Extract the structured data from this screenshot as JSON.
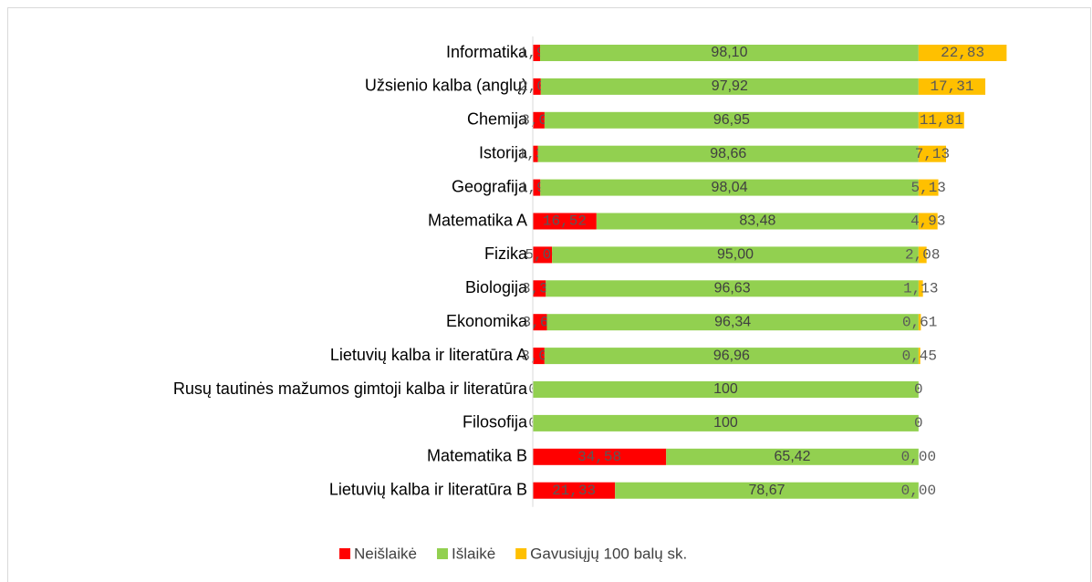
{
  "chart_data": {
    "type": "stacked-barh",
    "categories": [
      "Informatika",
      "Užsienio kalba (anglų)",
      "Chemija",
      "Istorija",
      "Geografija",
      "Matematika A",
      "Fizika",
      "Biologija",
      "Ekonomika",
      "Lietuvių kalba ir literatūra A",
      "Rusų tautinės mažumos gimtoji kalba ir literatūra",
      "Filosofija",
      "Matematika B",
      "Lietuvių kalba ir literatūra B"
    ],
    "series": [
      {
        "name": "Neišlaikė",
        "color": "#ff0000",
        "values": [
          1.9,
          2.08,
          3.05,
          1.34,
          1.96,
          16.52,
          5.0,
          3.38,
          3.66,
          3.04,
          0,
          0,
          34.58,
          21.33
        ],
        "value_labels": [
          "1,90",
          "2,08",
          "3,05",
          "1,34",
          "1,96",
          "16,52",
          "5,00",
          "3,38",
          "3,66",
          "3,04",
          "0",
          "0",
          "34,58",
          "21,33"
        ]
      },
      {
        "name": "Išlaikė",
        "color": "#92d050",
        "values": [
          98.1,
          97.92,
          96.95,
          98.66,
          98.04,
          83.48,
          95.0,
          96.63,
          96.34,
          96.96,
          100,
          100,
          65.42,
          78.67
        ],
        "value_labels": [
          "98,10",
          "97,92",
          "96,95",
          "98,66",
          "98,04",
          "83,48",
          "95,00",
          "96,63",
          "96,34",
          "96,96",
          "100",
          "100",
          "65,42",
          "78,67"
        ]
      },
      {
        "name": "Gavusiųjų 100 balų sk.",
        "color": "#ffc000",
        "values": [
          22.83,
          17.31,
          11.81,
          7.13,
          5.13,
          4.93,
          2.08,
          1.13,
          0.61,
          0.45,
          0,
          0,
          0.0,
          0.0
        ],
        "value_labels": [
          "22,83",
          "17,31",
          "11,81",
          "7,13",
          "5,13",
          "4,93",
          "2,08",
          "1,13",
          "0,61",
          "0,45",
          "0",
          "0",
          "0,00",
          "0,00"
        ]
      }
    ],
    "xlim": [
      0,
      140
    ],
    "legend": "bottom"
  }
}
